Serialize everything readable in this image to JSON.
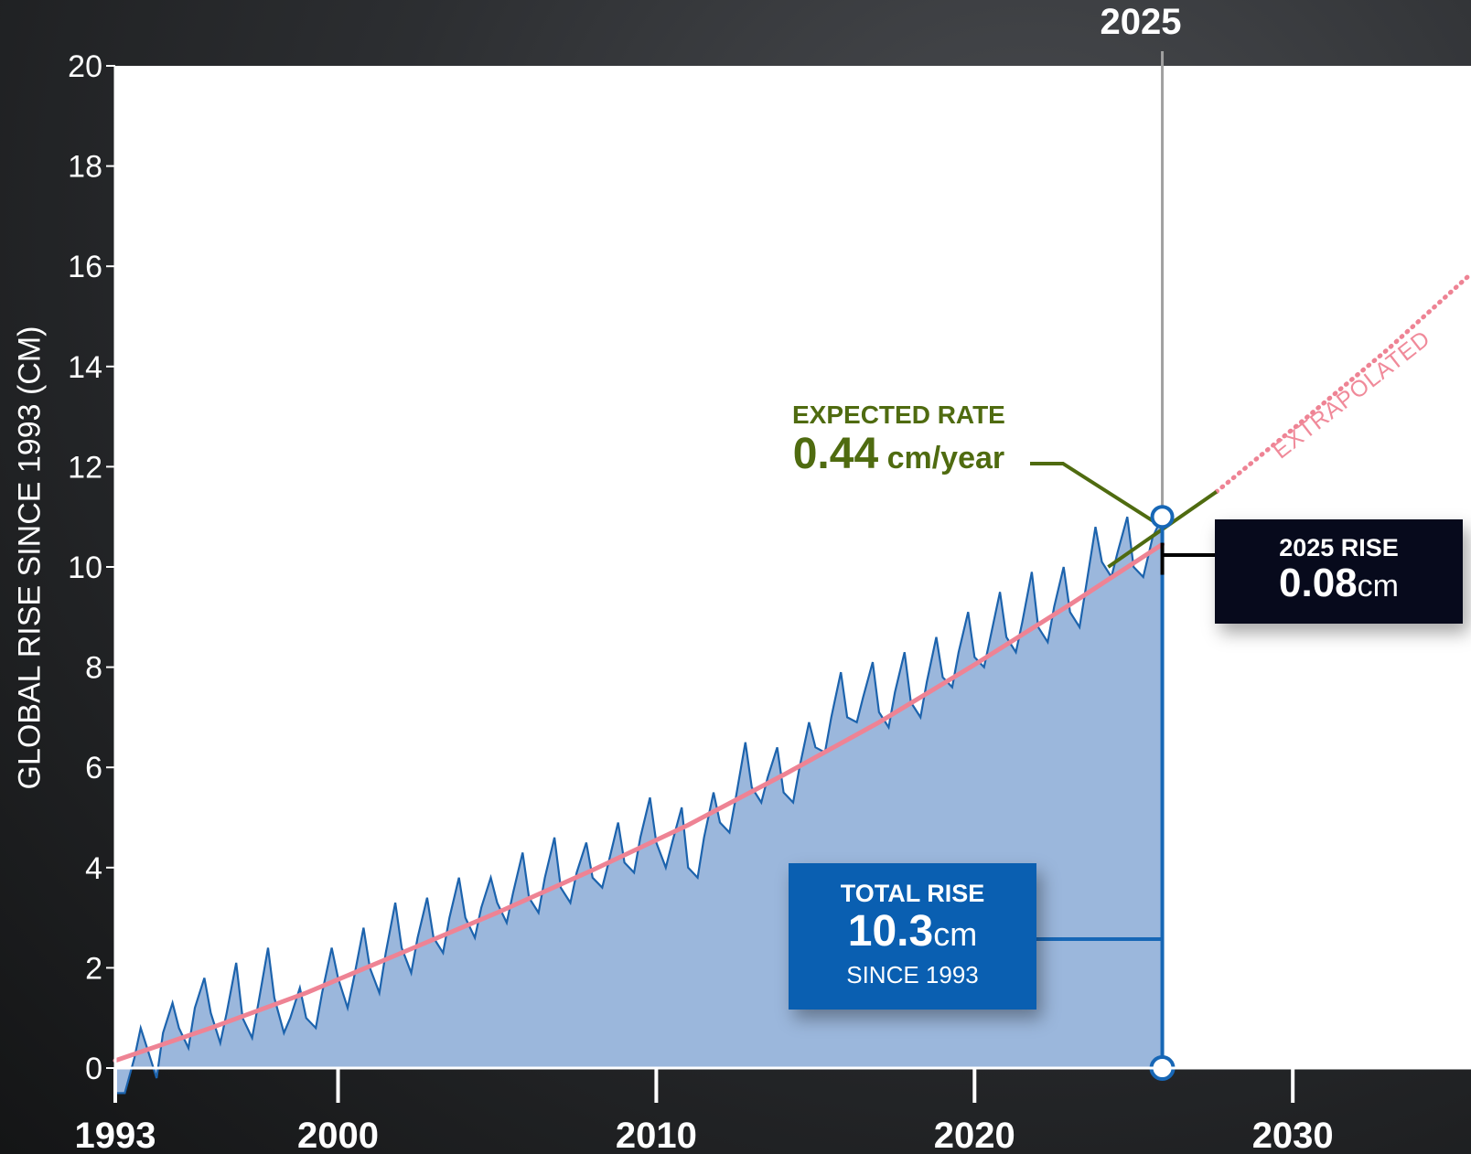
{
  "colors": {
    "observed_line": "#1c63ad",
    "observed_fill": "#9bb7dc",
    "trend": "#ee8394",
    "rate": "#4f6b10",
    "marker": "#1767b6",
    "current_year_line": "#a0a0a0"
  },
  "icons": {
    "logo": "nasa-logo"
  },
  "labels": {
    "ylabel": "GLOBAL RISE SINCE 1993 (CM)",
    "current_year": "2025",
    "extrapolated": "EXTRAPOLATED"
  },
  "rate_box": {
    "title": "EXPECTED RATE",
    "value": "0.44",
    "unit": " cm/year"
  },
  "rise_box": {
    "title": "2025 RISE",
    "value": "0.08",
    "unit": "cm"
  },
  "total_box": {
    "title": "TOTAL RISE",
    "value": "10.3",
    "unit": "cm",
    "subtitle": "SINCE 1993"
  },
  "chart_data": {
    "type": "area",
    "title": "",
    "xlabel": "",
    "ylabel": "GLOBAL RISE SINCE 1993 (CM)",
    "xlim": [
      1993,
      2035.6
    ],
    "ylim": [
      0,
      20
    ],
    "x_ticks": [
      1993,
      2000,
      2010,
      2020,
      2030
    ],
    "y_ticks": [
      0,
      2,
      4,
      6,
      8,
      10,
      12,
      14,
      16,
      18,
      20
    ],
    "grid": false,
    "series": [
      {
        "role": "observed",
        "style": "line-with-fill",
        "x": [
          1993.0,
          1993.3,
          1993.6,
          1993.8,
          1994.0,
          1994.3,
          1994.5,
          1994.8,
          1995.0,
          1995.3,
          1995.5,
          1995.8,
          1996.0,
          1996.3,
          1996.5,
          1996.8,
          1997.0,
          1997.3,
          1997.5,
          1997.8,
          1998.0,
          1998.3,
          1998.5,
          1998.8,
          1999.0,
          1999.3,
          1999.5,
          1999.8,
          2000.0,
          2000.3,
          2000.5,
          2000.8,
          2001.0,
          2001.3,
          2001.5,
          2001.8,
          2002.0,
          2002.3,
          2002.5,
          2002.8,
          2003.0,
          2003.3,
          2003.5,
          2003.8,
          2004.0,
          2004.3,
          2004.5,
          2004.8,
          2005.0,
          2005.3,
          2005.5,
          2005.8,
          2006.0,
          2006.3,
          2006.5,
          2006.8,
          2007.0,
          2007.3,
          2007.5,
          2007.8,
          2008.0,
          2008.3,
          2008.5,
          2008.8,
          2009.0,
          2009.3,
          2009.5,
          2009.8,
          2010.0,
          2010.3,
          2010.5,
          2010.8,
          2011.0,
          2011.3,
          2011.5,
          2011.8,
          2012.0,
          2012.3,
          2012.5,
          2012.8,
          2013.0,
          2013.3,
          2013.5,
          2013.8,
          2014.0,
          2014.3,
          2014.5,
          2014.8,
          2015.0,
          2015.3,
          2015.5,
          2015.8,
          2016.0,
          2016.3,
          2016.5,
          2016.8,
          2017.0,
          2017.3,
          2017.5,
          2017.8,
          2018.0,
          2018.3,
          2018.5,
          2018.8,
          2019.0,
          2019.3,
          2019.5,
          2019.8,
          2020.0,
          2020.3,
          2020.5,
          2020.8,
          2021.0,
          2021.3,
          2021.5,
          2021.8,
          2022.0,
          2022.3,
          2022.5,
          2022.8,
          2023.0,
          2023.3,
          2023.5,
          2023.8,
          2024.0,
          2024.3,
          2024.5,
          2024.8,
          2025.0,
          2025.3,
          2025.6,
          2025.9
        ],
        "y": [
          -0.5,
          -0.5,
          0.2,
          0.8,
          0.4,
          -0.2,
          0.7,
          1.3,
          0.8,
          0.4,
          1.2,
          1.8,
          1.1,
          0.5,
          1.1,
          2.1,
          1.0,
          0.6,
          1.3,
          2.4,
          1.4,
          0.7,
          1.0,
          1.6,
          1.0,
          0.8,
          1.5,
          2.4,
          1.8,
          1.2,
          1.8,
          2.8,
          2.0,
          1.5,
          2.3,
          3.3,
          2.4,
          1.9,
          2.6,
          3.4,
          2.6,
          2.3,
          3.0,
          3.8,
          3.0,
          2.6,
          3.2,
          3.8,
          3.3,
          2.9,
          3.5,
          4.3,
          3.4,
          3.1,
          3.8,
          4.6,
          3.6,
          3.3,
          3.9,
          4.5,
          3.8,
          3.6,
          4.1,
          4.9,
          4.1,
          3.9,
          4.6,
          5.4,
          4.5,
          4.0,
          4.5,
          5.2,
          4.0,
          3.8,
          4.6,
          5.5,
          4.9,
          4.7,
          5.4,
          6.5,
          5.6,
          5.3,
          5.8,
          6.4,
          5.5,
          5.3,
          6.0,
          6.9,
          6.4,
          6.3,
          7.0,
          7.9,
          7.0,
          6.9,
          7.4,
          8.1,
          7.1,
          6.8,
          7.5,
          8.3,
          7.3,
          7.0,
          7.7,
          8.6,
          7.8,
          7.6,
          8.3,
          9.1,
          8.2,
          8.0,
          8.6,
          9.5,
          8.6,
          8.3,
          8.9,
          9.9,
          8.8,
          8.5,
          9.2,
          10.0,
          9.1,
          8.8,
          9.6,
          10.8,
          10.1,
          9.8,
          10.3,
          11.0,
          10.0,
          9.8,
          10.6,
          11.0
        ]
      },
      {
        "role": "trend",
        "style": "solid",
        "x": [
          1993,
          1996,
          1999,
          2002,
          2005,
          2008,
          2011,
          2014,
          2017,
          2020,
          2023,
          2025.9
        ],
        "y": [
          0.15,
          0.8,
          1.5,
          2.3,
          3.1,
          3.95,
          4.85,
          5.85,
          6.9,
          8.05,
          9.25,
          10.45
        ]
      },
      {
        "role": "extrapolated",
        "style": "dotted",
        "x": [
          2027.6,
          2030,
          2033,
          2035.6
        ],
        "y": [
          11.5,
          12.75,
          14.35,
          15.85
        ]
      },
      {
        "role": "expected-rate",
        "style": "solid",
        "x": [
          2024.2,
          2027.6
        ],
        "y": [
          10.0,
          11.5
        ]
      }
    ],
    "current_year": 2025.9,
    "total_rise_cm": 10.3,
    "rise_2025_cm": 0.08,
    "expected_rate_cm_per_year": 0.44
  }
}
